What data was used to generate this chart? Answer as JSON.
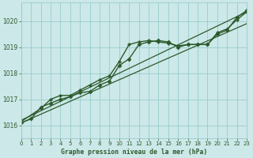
{
  "title": "Graphe pression niveau de la mer (hPa)",
  "background_color": "#cce8e8",
  "grid_color": "#99cccc",
  "line_color": "#2d5a2d",
  "xlim": [
    0,
    23
  ],
  "ylim": [
    1015.5,
    1020.7
  ],
  "yticks": [
    1016,
    1017,
    1018,
    1019,
    1020
  ],
  "xticks": [
    0,
    1,
    2,
    3,
    4,
    5,
    6,
    7,
    8,
    9,
    10,
    11,
    12,
    13,
    14,
    15,
    16,
    17,
    18,
    19,
    20,
    21,
    22,
    23
  ],
  "series": [
    {
      "x": [
        0,
        23
      ],
      "y": [
        1016.1,
        1019.9
      ],
      "marker": null,
      "linewidth": 0.9,
      "linestyle": "-"
    },
    {
      "x": [
        0,
        23
      ],
      "y": [
        1016.2,
        1020.35
      ],
      "marker": null,
      "linewidth": 0.9,
      "linestyle": "-"
    },
    {
      "x": [
        0,
        1,
        2,
        3,
        4,
        5,
        6,
        7,
        8,
        9,
        10,
        11,
        12,
        13,
        14,
        15,
        16,
        17,
        18,
        19,
        20,
        21,
        22,
        23
      ],
      "y": [
        1016.1,
        1016.25,
        1016.7,
        1016.85,
        1017.0,
        1017.1,
        1017.25,
        1017.3,
        1017.55,
        1017.7,
        1018.3,
        1018.55,
        1019.1,
        1019.2,
        1019.25,
        1019.2,
        1019.0,
        1019.1,
        1019.1,
        1019.1,
        1019.5,
        1019.65,
        1020.15,
        1020.4
      ],
      "marker": "D",
      "markersize": 2.5,
      "linewidth": 1.0,
      "linestyle": "-"
    },
    {
      "x": [
        0,
        2,
        3,
        4,
        5,
        6,
        7,
        8,
        9,
        10,
        11,
        12,
        13,
        14,
        15,
        16,
        17,
        18,
        19,
        20,
        21,
        22,
        23
      ],
      "y": [
        1016.15,
        1016.65,
        1017.0,
        1017.15,
        1017.15,
        1017.35,
        1017.55,
        1017.75,
        1017.9,
        1018.45,
        1019.1,
        1019.2,
        1019.25,
        1019.2,
        1019.15,
        1019.05,
        1019.1,
        1019.1,
        1019.1,
        1019.55,
        1019.7,
        1020.05,
        1020.35
      ],
      "marker": "P",
      "markersize": 2.5,
      "linewidth": 1.0,
      "linestyle": "-"
    }
  ]
}
